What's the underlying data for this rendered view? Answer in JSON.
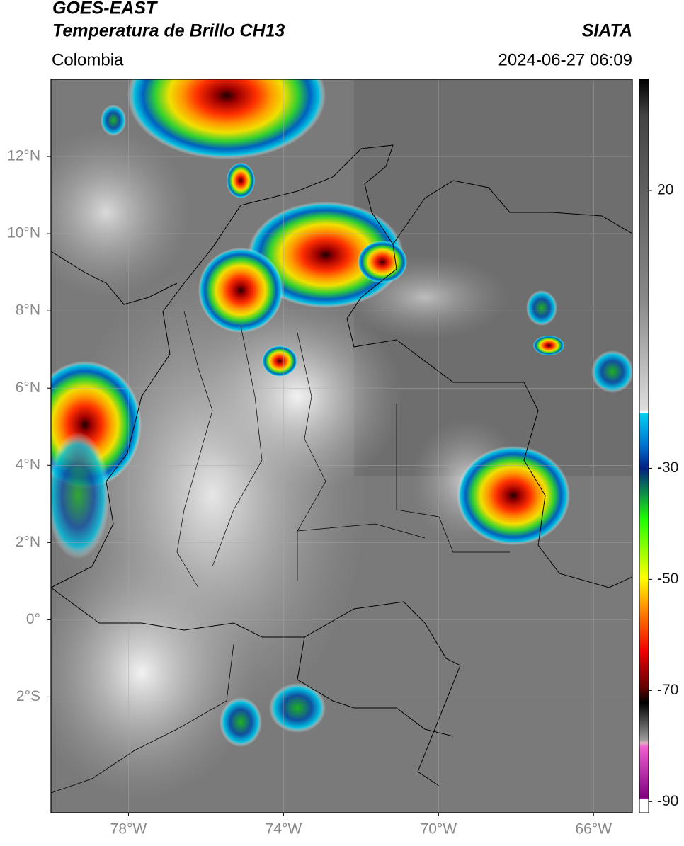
{
  "header": {
    "title": "GOES-EAST",
    "subtitle": "Temperatura de Brillo CH13",
    "source": "SIATA",
    "region": "Colombia",
    "datetime": "2024-06-27 06:09"
  },
  "map": {
    "xlim": [
      -80,
      -65
    ],
    "ylim": [
      -5,
      14
    ],
    "xticks": [
      {
        "value": -78,
        "label": "78°W"
      },
      {
        "value": -74,
        "label": "74°W"
      },
      {
        "value": -70,
        "label": "70°W"
      },
      {
        "value": -66,
        "label": "66°W"
      }
    ],
    "yticks": [
      {
        "value": 12,
        "label": "12°N"
      },
      {
        "value": 10,
        "label": "10°N"
      },
      {
        "value": 8,
        "label": "8°N"
      },
      {
        "value": 6,
        "label": "6°N"
      },
      {
        "value": 4,
        "label": "4°N"
      },
      {
        "value": 2,
        "label": "2°N"
      },
      {
        "value": 0,
        "label": "0°"
      },
      {
        "value": -2,
        "label": "2°S"
      }
    ],
    "grid": true
  },
  "colorbar": {
    "lim": [
      -92,
      40
    ],
    "ticks": [
      20,
      -30,
      -50,
      -70,
      -90
    ]
  }
}
